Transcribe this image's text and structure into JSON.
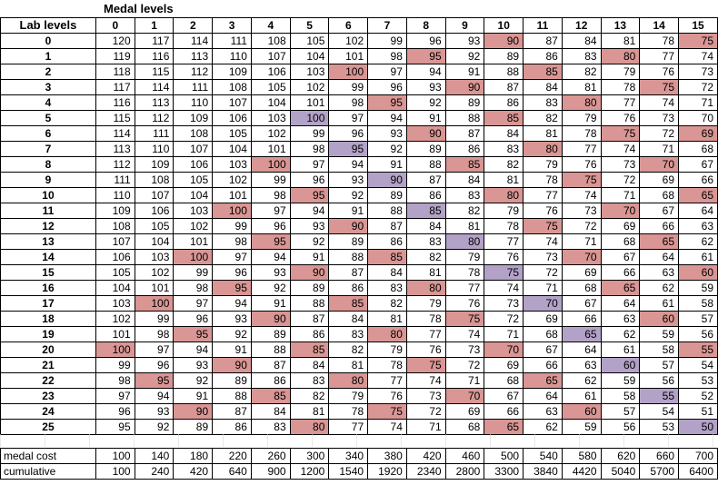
{
  "title": "Medal levels",
  "row_header": "Lab levels",
  "medal_levels": [
    "0",
    "1",
    "2",
    "3",
    "4",
    "5",
    "6",
    "7",
    "8",
    "9",
    "10",
    "11",
    "12",
    "13",
    "14",
    "15"
  ],
  "colors": {
    "red": "#d99694",
    "purple": "#b3a2c7"
  },
  "rows": [
    {
      "lab": "0",
      "v": [
        120,
        117,
        114,
        111,
        108,
        105,
        102,
        99,
        96,
        93,
        90,
        87,
        84,
        81,
        78,
        75
      ],
      "red": [
        10,
        15
      ],
      "purple": []
    },
    {
      "lab": "1",
      "v": [
        119,
        116,
        113,
        110,
        107,
        104,
        101,
        98,
        95,
        92,
        89,
        86,
        83,
        80,
        77,
        74
      ],
      "red": [
        8,
        13
      ],
      "purple": []
    },
    {
      "lab": "2",
      "v": [
        118,
        115,
        112,
        109,
        106,
        103,
        100,
        97,
        94,
        91,
        88,
        85,
        82,
        79,
        76,
        73
      ],
      "red": [
        6,
        11
      ],
      "purple": []
    },
    {
      "lab": "3",
      "v": [
        117,
        114,
        111,
        108,
        105,
        102,
        99,
        96,
        93,
        90,
        87,
        84,
        81,
        78,
        75,
        72
      ],
      "red": [
        9,
        14
      ],
      "purple": []
    },
    {
      "lab": "4",
      "v": [
        116,
        113,
        110,
        107,
        104,
        101,
        98,
        95,
        92,
        89,
        86,
        83,
        80,
        77,
        74,
        71
      ],
      "red": [
        7,
        12
      ],
      "purple": []
    },
    {
      "lab": "5",
      "v": [
        115,
        112,
        109,
        106,
        103,
        100,
        97,
        94,
        91,
        88,
        85,
        82,
        79,
        76,
        73,
        70
      ],
      "red": [
        10
      ],
      "purple": [
        5
      ]
    },
    {
      "lab": "6",
      "v": [
        114,
        111,
        108,
        105,
        102,
        99,
        96,
        93,
        90,
        87,
        84,
        81,
        78,
        75,
        72,
        69
      ],
      "red": [
        8,
        13,
        15
      ],
      "purple": []
    },
    {
      "lab": "7",
      "v": [
        113,
        110,
        107,
        104,
        101,
        98,
        95,
        92,
        89,
        86,
        83,
        80,
        77,
        74,
        71,
        68
      ],
      "red": [
        11
      ],
      "purple": [
        6
      ]
    },
    {
      "lab": "8",
      "v": [
        112,
        109,
        106,
        103,
        100,
        97,
        94,
        91,
        88,
        85,
        82,
        79,
        76,
        73,
        70,
        67
      ],
      "red": [
        4,
        9,
        14
      ],
      "purple": []
    },
    {
      "lab": "9",
      "v": [
        111,
        108,
        105,
        102,
        99,
        96,
        93,
        90,
        87,
        84,
        81,
        78,
        75,
        72,
        69,
        66
      ],
      "red": [
        12
      ],
      "purple": [
        7
      ]
    },
    {
      "lab": "10",
      "v": [
        110,
        107,
        104,
        101,
        98,
        95,
        92,
        89,
        86,
        83,
        80,
        77,
        74,
        71,
        68,
        65
      ],
      "red": [
        5,
        10,
        15
      ],
      "purple": []
    },
    {
      "lab": "11",
      "v": [
        109,
        106,
        103,
        100,
        97,
        94,
        91,
        88,
        85,
        82,
        79,
        76,
        73,
        70,
        67,
        64
      ],
      "red": [
        3,
        13
      ],
      "purple": [
        8
      ]
    },
    {
      "lab": "12",
      "v": [
        108,
        105,
        102,
        99,
        96,
        93,
        90,
        87,
        84,
        81,
        78,
        75,
        72,
        69,
        66,
        63
      ],
      "red": [
        6,
        11
      ],
      "purple": []
    },
    {
      "lab": "13",
      "v": [
        107,
        104,
        101,
        98,
        95,
        92,
        89,
        86,
        83,
        80,
        77,
        74,
        71,
        68,
        65,
        62
      ],
      "red": [
        4,
        14
      ],
      "purple": [
        9
      ]
    },
    {
      "lab": "14",
      "v": [
        106,
        103,
        100,
        97,
        94,
        91,
        88,
        85,
        82,
        79,
        76,
        73,
        70,
        67,
        64,
        61
      ],
      "red": [
        2,
        7,
        12
      ],
      "purple": []
    },
    {
      "lab": "15",
      "v": [
        105,
        102,
        99,
        96,
        93,
        90,
        87,
        84,
        81,
        78,
        75,
        72,
        69,
        66,
        63,
        60
      ],
      "red": [
        5,
        15
      ],
      "purple": [
        10
      ]
    },
    {
      "lab": "16",
      "v": [
        104,
        101,
        98,
        95,
        92,
        89,
        86,
        83,
        80,
        77,
        74,
        71,
        68,
        65,
        62,
        59
      ],
      "red": [
        3,
        8,
        13
      ],
      "purple": []
    },
    {
      "lab": "17",
      "v": [
        103,
        100,
        97,
        94,
        91,
        88,
        85,
        82,
        79,
        76,
        73,
        70,
        67,
        64,
        61,
        58
      ],
      "red": [
        1,
        6
      ],
      "purple": [
        11
      ]
    },
    {
      "lab": "18",
      "v": [
        102,
        99,
        96,
        93,
        90,
        87,
        84,
        81,
        78,
        75,
        72,
        69,
        66,
        63,
        60,
        57
      ],
      "red": [
        4,
        9,
        14
      ],
      "purple": []
    },
    {
      "lab": "19",
      "v": [
        101,
        98,
        95,
        92,
        89,
        86,
        83,
        80,
        77,
        74,
        71,
        68,
        65,
        62,
        59,
        56
      ],
      "red": [
        2,
        7
      ],
      "purple": [
        12
      ]
    },
    {
      "lab": "20",
      "v": [
        100,
        97,
        94,
        91,
        88,
        85,
        82,
        79,
        76,
        73,
        70,
        67,
        64,
        61,
        58,
        55
      ],
      "red": [
        0,
        5,
        10,
        15
      ],
      "purple": []
    },
    {
      "lab": "21",
      "v": [
        99,
        96,
        93,
        90,
        87,
        84,
        81,
        78,
        75,
        72,
        69,
        66,
        63,
        60,
        57,
        54
      ],
      "red": [
        3,
        8
      ],
      "purple": [
        13
      ]
    },
    {
      "lab": "22",
      "v": [
        98,
        95,
        92,
        89,
        86,
        83,
        80,
        77,
        74,
        71,
        68,
        65,
        62,
        59,
        56,
        53
      ],
      "red": [
        1,
        6,
        11
      ],
      "purple": []
    },
    {
      "lab": "23",
      "v": [
        97,
        94,
        91,
        88,
        85,
        82,
        79,
        76,
        73,
        70,
        67,
        64,
        61,
        58,
        55,
        52
      ],
      "red": [
        4,
        9
      ],
      "purple": [
        14
      ]
    },
    {
      "lab": "24",
      "v": [
        96,
        93,
        90,
        87,
        84,
        81,
        78,
        75,
        72,
        69,
        66,
        63,
        60,
        57,
        54,
        51
      ],
      "red": [
        2,
        7,
        12
      ],
      "purple": []
    },
    {
      "lab": "25",
      "v": [
        95,
        92,
        89,
        86,
        83,
        80,
        77,
        74,
        71,
        68,
        65,
        62,
        59,
        56,
        53,
        50
      ],
      "red": [
        5,
        10
      ],
      "purple": [
        15
      ]
    }
  ],
  "cost_rows": [
    {
      "label": "medal cost",
      "v": [
        100,
        140,
        180,
        220,
        260,
        300,
        340,
        380,
        420,
        460,
        500,
        540,
        580,
        620,
        660,
        700
      ]
    },
    {
      "label": "cumulative",
      "v": [
        100,
        240,
        420,
        640,
        900,
        1200,
        1540,
        1920,
        2340,
        2800,
        3300,
        3840,
        4420,
        5040,
        5700,
        6400
      ]
    }
  ]
}
